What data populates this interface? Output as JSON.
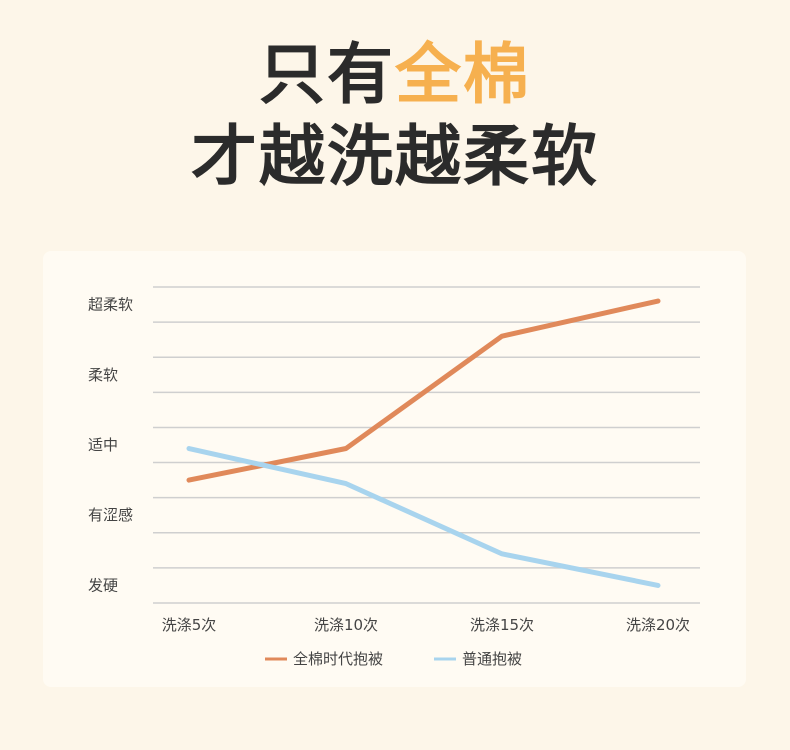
{
  "headline": {
    "line1_a": "只有",
    "line1_b": "全棉",
    "line2": "才越洗越柔软",
    "accent_color": "#f6b04f"
  },
  "chart_data": {
    "type": "line",
    "categories": [
      "洗涤5次",
      "洗涤10次",
      "洗涤15次",
      "洗涤20次"
    ],
    "y_ticks": [
      "发硬",
      "有涩感",
      "适中",
      "柔软",
      "超柔软"
    ],
    "ylim": [
      0,
      4.5
    ],
    "grid": true,
    "legend_position": "bottom-center",
    "series": [
      {
        "name": "全棉时代抱被",
        "values": [
          1.75,
          2.2,
          3.8,
          4.3
        ],
        "color": "#e0895a"
      },
      {
        "name": "普通抱被",
        "values": [
          2.2,
          1.7,
          0.7,
          0.25
        ],
        "color": "#a8d4ee"
      }
    ]
  }
}
